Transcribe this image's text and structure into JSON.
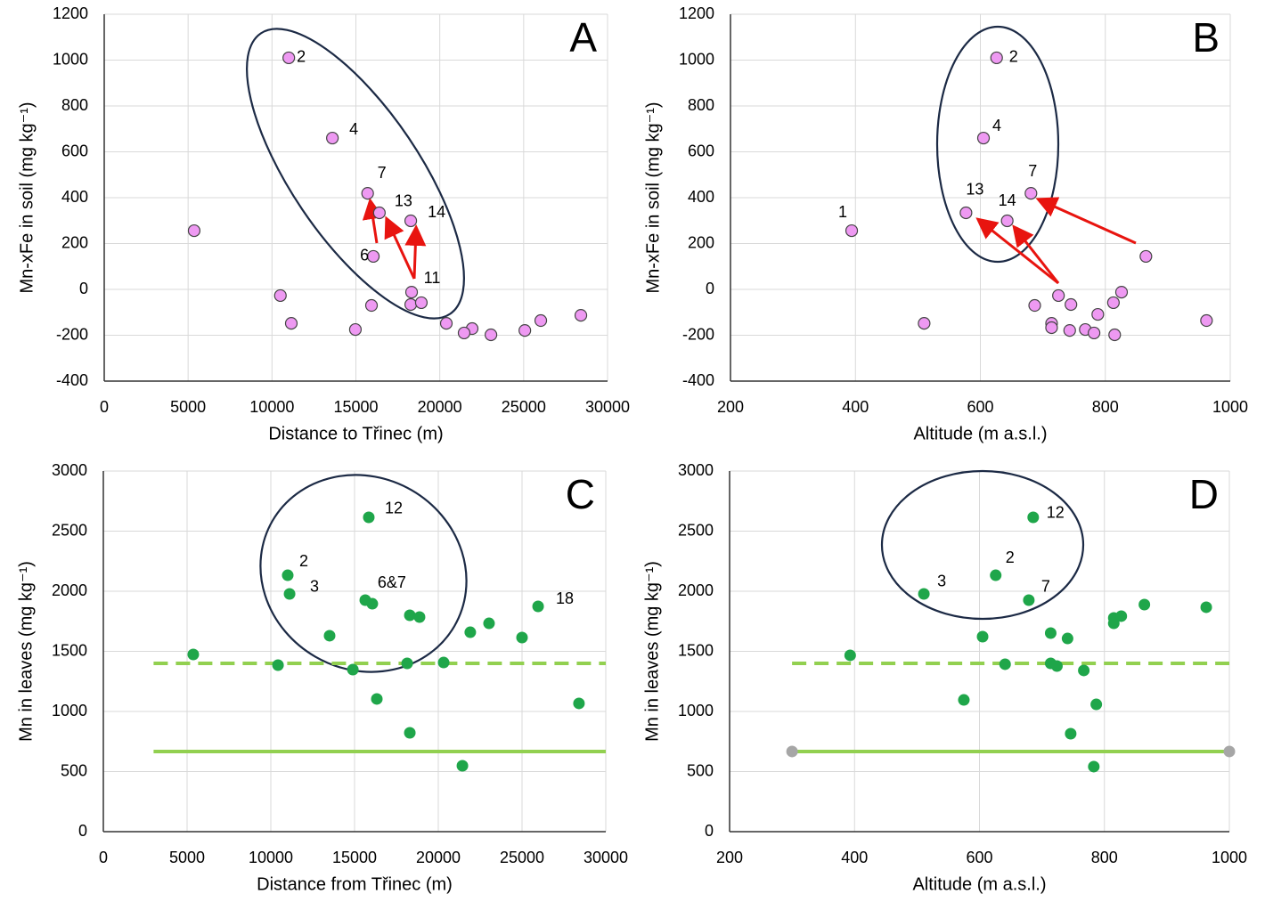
{
  "chart_data": [
    {
      "type": "scatter",
      "panel": "A",
      "xlabel": "Distance to Třinec (m)",
      "ylabel": "Mn-xFe in soil (mg kg⁻¹)",
      "xlim": [
        0,
        30000
      ],
      "xticks": [
        0,
        5000,
        10000,
        15000,
        20000,
        25000,
        30000
      ],
      "ylim": [
        -400,
        1200
      ],
      "yticks": [
        -400,
        -200,
        0,
        200,
        400,
        600,
        800,
        1000,
        1200
      ],
      "grid": true,
      "x": [
        11000,
        13600,
        5360,
        15700,
        16400,
        18270,
        16040,
        18320,
        18270,
        18900,
        10500,
        11150,
        15930,
        14970,
        20390,
        21930,
        21450,
        23050,
        25070,
        26020,
        28410
      ],
      "series": [
        {
          "color": "#ee99f2",
          "values": [
            1010,
            660,
            256,
            419,
            334,
            299,
            144,
            -12,
            -66,
            -58,
            -27,
            -148,
            -70,
            -175,
            -148,
            -171,
            -190,
            -198,
            -179,
            -136,
            -113
          ],
          "point_labels": [
            "2",
            "4",
            null,
            "7",
            "13",
            "14",
            "6",
            "11",
            null,
            null,
            null,
            null,
            null,
            null,
            null,
            null,
            null,
            null,
            null,
            null,
            null
          ]
        }
      ]
    },
    {
      "type": "scatter",
      "panel": "B",
      "xlabel": "Altitude (m a.s.l.)",
      "ylabel": "Mn-xFe in soil (mg kg⁻¹)",
      "xlim": [
        200,
        1000
      ],
      "xticks": [
        200,
        400,
        600,
        800,
        1000
      ],
      "ylim": [
        -400,
        1200
      ],
      "yticks": [
        -400,
        -200,
        0,
        200,
        400,
        600,
        800,
        1000,
        1200
      ],
      "grid": true,
      "x": [
        626,
        605,
        394,
        681,
        577,
        643,
        865,
        826,
        725,
        813,
        745,
        687,
        788,
        510,
        714,
        714,
        743,
        768,
        782,
        815,
        962
      ],
      "series": [
        {
          "color": "#ee99f2",
          "values": [
            1010,
            660,
            256,
            419,
            334,
            299,
            144,
            -12,
            -27,
            -58,
            -66,
            -70,
            -109,
            -148,
            -148,
            -167,
            -179,
            -175,
            -190,
            -198,
            -136
          ],
          "point_labels": [
            "2",
            "4",
            "1",
            "7",
            "13",
            "14",
            null,
            null,
            null,
            null,
            null,
            null,
            null,
            null,
            null,
            null,
            null,
            null,
            null,
            null,
            null
          ]
        }
      ]
    },
    {
      "type": "scatter",
      "panel": "C",
      "xlabel": "Distance from Třinec (m)",
      "ylabel": "Mn in leaves (mg kg⁻¹)",
      "xlim": [
        0,
        30000
      ],
      "xticks": [
        0,
        5000,
        10000,
        15000,
        20000,
        25000,
        30000
      ],
      "ylim": [
        0,
        3000
      ],
      "yticks": [
        0,
        500,
        1000,
        1500,
        2000,
        2500,
        3000
      ],
      "grid": true,
      "x": [
        15850,
        11010,
        11120,
        15640,
        16060,
        13510,
        18300,
        18880,
        21910,
        23030,
        25000,
        25960,
        5370,
        10430,
        14900,
        18140,
        20320,
        16330,
        18300,
        21440,
        28400
      ],
      "series": [
        {
          "color": "#1fa64a",
          "values": [
            2615,
            2133,
            1978,
            1926,
            1896,
            1630,
            1800,
            1785,
            1659,
            1733,
            1615,
            1874,
            1474,
            1385,
            1348,
            1400,
            1407,
            1104,
            822,
            548,
            1067
          ],
          "point_labels": [
            "12",
            "2",
            "3",
            null,
            "6&7",
            null,
            null,
            null,
            null,
            null,
            null,
            "18",
            null,
            null,
            null,
            null,
            null,
            null,
            null,
            null,
            null
          ]
        }
      ],
      "hlines": [
        {
          "value": 1400,
          "xlim": [
            3000,
            30000
          ],
          "style": "dashed",
          "color": "#92d050"
        },
        {
          "value": 667,
          "xlim": [
            3000,
            30000
          ],
          "style": "solid",
          "color": "#92d050"
        }
      ]
    },
    {
      "type": "scatter",
      "panel": "D",
      "xlabel": "Altitude (m a.s.l.)",
      "ylabel": "Mn in leaves (mg kg⁻¹)",
      "xlim": [
        200,
        1000
      ],
      "xticks": [
        200,
        400,
        600,
        800,
        1000
      ],
      "ylim": [
        0,
        3000
      ],
      "yticks": [
        0,
        500,
        1000,
        1500,
        2000,
        2500,
        3000
      ],
      "grid": true,
      "x": [
        686,
        626,
        511,
        679,
        605,
        815,
        815,
        827,
        864,
        963,
        393,
        714,
        741,
        641,
        714,
        724,
        767,
        575,
        746,
        787,
        783
      ],
      "series": [
        {
          "color": "#1fa64a",
          "values": [
            2615,
            2133,
            1978,
            1926,
            1622,
            1778,
            1733,
            1793,
            1889,
            1867,
            1467,
            1652,
            1607,
            1393,
            1400,
            1378,
            1341,
            1096,
            815,
            1059,
            541
          ],
          "point_labels": [
            "12",
            "2",
            "3",
            "7",
            null,
            null,
            null,
            null,
            null,
            null,
            null,
            null,
            null,
            null,
            null,
            null,
            null,
            null,
            null,
            null,
            null
          ]
        }
      ],
      "hlines": [
        {
          "value": 1400,
          "xlim": [
            300,
            1000
          ],
          "style": "dashed",
          "color": "#92d050"
        },
        {
          "value": 667,
          "xlim": [
            300,
            1000
          ],
          "style": "solid",
          "color": "#92d050",
          "endpoint_color": "#a6a6a6"
        }
      ]
    }
  ]
}
